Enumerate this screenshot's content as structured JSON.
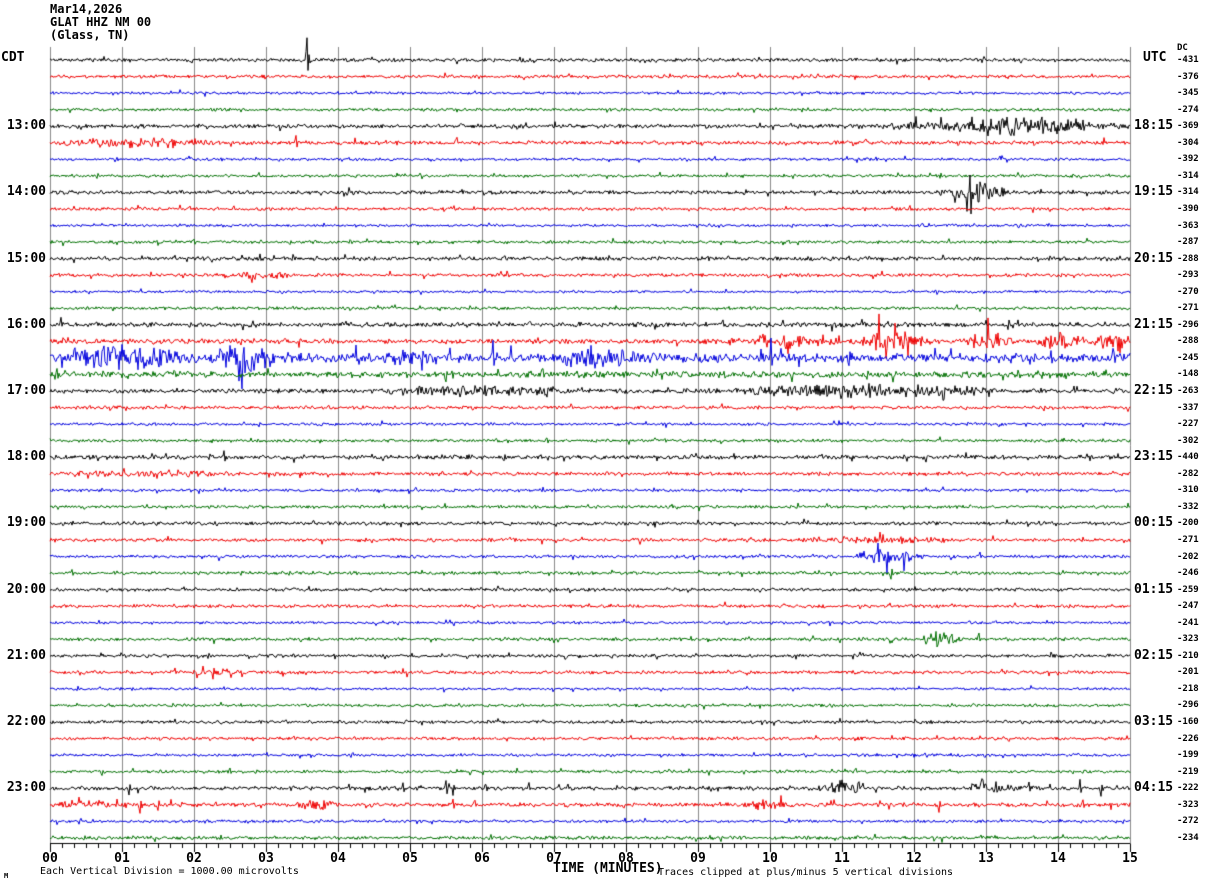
{
  "header": {
    "date_line": "Mar14,2026",
    "station_line": "GLAT HHZ NM 00",
    "location_line": "(Glass, TN)",
    "left_tz": "CDT",
    "right_tz": "UTC",
    "dc_header": "DC"
  },
  "footer": {
    "xlabel": "TIME (MINUTES)",
    "scale_note": "Each Vertical Division = 1000.00 microvolts",
    "clip_note": "Traces clipped at plus/minus 5 vertical divisions",
    "scale_mark": "M"
  },
  "x_ticks": [
    "00",
    "01",
    "02",
    "03",
    "04",
    "05",
    "06",
    "07",
    "08",
    "09",
    "10",
    "11",
    "12",
    "13",
    "14",
    "15"
  ],
  "colors": {
    "trace_cycle": [
      "#000000",
      "#ee0000",
      "#0000dd",
      "#007000"
    ],
    "grid": "#888888",
    "axis": "#000000"
  },
  "chart_data": {
    "type": "line",
    "subtype": "helicorder-seismogram",
    "title": "GLAT HHZ NM 00 (Glass, TN) Mar14,2026",
    "xlabel": "TIME (MINUTES)",
    "x_range_minutes": [
      0,
      15
    ],
    "minutes_per_line": 15,
    "lines_per_hour": 4,
    "left_time_axis": "CDT",
    "right_time_axis": "UTC",
    "grid": "vertical lines every minute",
    "clip_divisions": 5,
    "microvolts_per_division": "1000.00",
    "traces": [
      {
        "c": 0,
        "dc": -431,
        "a": 1.5,
        "sp": [
          [
            3.57,
            22
          ]
        ]
      },
      {
        "c": 1,
        "dc": -376,
        "a": 1.4
      },
      {
        "c": 2,
        "dc": -345,
        "a": 1.1
      },
      {
        "c": 3,
        "dc": -274,
        "a": 1.2
      },
      {
        "c": 0,
        "dc": -369,
        "a": 1.7,
        "cdt": "13:00",
        "utc": "18:15",
        "ev": [
          [
            11.2,
            15,
            2.8
          ],
          [
            12.5,
            14.5,
            3.5
          ]
        ]
      },
      {
        "c": 1,
        "dc": -304,
        "a": 1.6,
        "ev": [
          [
            0,
            2.4,
            2.6
          ]
        ],
        "sp": [
          [
            3.42,
            7
          ],
          [
            5.65,
            5
          ],
          [
            8.4,
            3
          ]
        ]
      },
      {
        "c": 2,
        "dc": -392,
        "a": 1.2,
        "sp": [
          [
            13.2,
            3
          ]
        ]
      },
      {
        "c": 3,
        "dc": -314,
        "a": 1.2
      },
      {
        "c": 0,
        "dc": -314,
        "a": 1.6,
        "cdt": "14:00",
        "utc": "19:15",
        "ev": [
          [
            12.3,
            13.4,
            6
          ]
        ],
        "sp": [
          [
            12.78,
            11
          ],
          [
            12.9,
            -9
          ]
        ]
      },
      {
        "c": 1,
        "dc": -390,
        "a": 1.3,
        "sp": [
          [
            1.95,
            4
          ],
          [
            2.55,
            3
          ]
        ]
      },
      {
        "c": 2,
        "dc": -363,
        "a": 1.1
      },
      {
        "c": 3,
        "dc": -287,
        "a": 1.3,
        "sp": [
          [
            2.0,
            3
          ]
        ]
      },
      {
        "c": 0,
        "dc": -288,
        "a": 1.6,
        "cdt": "15:00",
        "utc": "20:15"
      },
      {
        "c": 1,
        "dc": -293,
        "a": 1.4,
        "ev": [
          [
            2.3,
            3.4,
            2.2
          ]
        ]
      },
      {
        "c": 2,
        "dc": -270,
        "a": 1.1
      },
      {
        "c": 3,
        "dc": -271,
        "a": 1.3
      },
      {
        "c": 0,
        "dc": -296,
        "a": 2.0,
        "cdt": "16:00",
        "utc": "21:15",
        "sp": [
          [
            0.15,
            6
          ],
          [
            9.35,
            5
          ],
          [
            13.0,
            4
          ]
        ]
      },
      {
        "c": 1,
        "dc": -288,
        "a": 2.0,
        "ev": [
          [
            9.8,
            11.0,
            4
          ],
          [
            11.2,
            12.2,
            7
          ],
          [
            12.7,
            13.4,
            6
          ],
          [
            13.7,
            14.4,
            5
          ],
          [
            14.5,
            15,
            7
          ]
        ],
        "sp": [
          [
            11.52,
            22
          ],
          [
            11.62,
            -18
          ],
          [
            9.9,
            7
          ]
        ]
      },
      {
        "c": 2,
        "dc": -245,
        "a": 4.0,
        "ev": [
          [
            0.3,
            1.8,
            6
          ],
          [
            2.2,
            3.2,
            7
          ],
          [
            4.6,
            5.4,
            4
          ],
          [
            7.0,
            8.2,
            4
          ]
        ],
        "sp": [
          [
            0.35,
            13
          ],
          [
            2.62,
            -17
          ],
          [
            2.7,
            15
          ],
          [
            5.0,
            -12
          ],
          [
            6.15,
            13
          ],
          [
            7.5,
            -12
          ],
          [
            10.02,
            17
          ],
          [
            11.1,
            -9
          ],
          [
            13.9,
            8
          ]
        ]
      },
      {
        "c": 3,
        "dc": -148,
        "a": 2.6,
        "sp": [
          [
            0.1,
            6
          ],
          [
            5.5,
            -8
          ],
          [
            6.85,
            7
          ],
          [
            11.35,
            -6
          ]
        ]
      },
      {
        "c": 0,
        "dc": -263,
        "a": 1.9,
        "cdt": "17:00",
        "utc": "22:15",
        "ev": [
          [
            4.4,
            7.3,
            3.2
          ],
          [
            9.4,
            13.3,
            3.6
          ]
        ],
        "sp": [
          [
            6.9,
            -9
          ],
          [
            10.5,
            6
          ],
          [
            11.7,
            7
          ],
          [
            12.4,
            -7
          ]
        ]
      },
      {
        "c": 1,
        "dc": -337,
        "a": 1.4,
        "sp": [
          [
            13.8,
            -4
          ]
        ]
      },
      {
        "c": 2,
        "dc": -227,
        "a": 1.2
      },
      {
        "c": 3,
        "dc": -302,
        "a": 1.3,
        "sp": [
          [
            6.9,
            4
          ]
        ]
      },
      {
        "c": 0,
        "dc": -440,
        "a": 1.8,
        "cdt": "18:00",
        "utc": "23:15",
        "sp": [
          [
            2.42,
            7
          ],
          [
            6.3,
            -4
          ],
          [
            9.5,
            4
          ]
        ]
      },
      {
        "c": 1,
        "dc": -282,
        "a": 1.5,
        "ev": [
          [
            0,
            2.6,
            1.5
          ]
        ]
      },
      {
        "c": 2,
        "dc": -310,
        "a": 1.2
      },
      {
        "c": 3,
        "dc": -332,
        "a": 1.3
      },
      {
        "c": 0,
        "dc": -200,
        "a": 1.5,
        "cdt": "19:00",
        "utc": "00:15"
      },
      {
        "c": 1,
        "dc": -271,
        "a": 1.4,
        "ev": [
          [
            10.4,
            12.6,
            1.8
          ]
        ]
      },
      {
        "c": 2,
        "dc": -202,
        "a": 1.3,
        "ev": [
          [
            11.15,
            12.2,
            4
          ]
        ],
        "sp": [
          [
            11.5,
            9
          ],
          [
            11.62,
            -15
          ],
          [
            12.92,
            5
          ]
        ]
      },
      {
        "c": 3,
        "dc": -246,
        "a": 1.4,
        "sp": [
          [
            0.3,
            4
          ],
          [
            11.68,
            -7
          ]
        ]
      },
      {
        "c": 0,
        "dc": -259,
        "a": 1.4,
        "cdt": "20:00",
        "utc": "01:15"
      },
      {
        "c": 1,
        "dc": -247,
        "a": 1.4
      },
      {
        "c": 2,
        "dc": -241,
        "a": 1.1
      },
      {
        "c": 3,
        "dc": -323,
        "a": 1.4,
        "ev": [
          [
            12.1,
            12.65,
            4.5
          ]
        ],
        "sp": [
          [
            12.3,
            7
          ],
          [
            12.9,
            6
          ]
        ]
      },
      {
        "c": 0,
        "dc": -210,
        "a": 1.4,
        "cdt": "21:00",
        "utc": "02:15",
        "sp": [
          [
            2.2,
            -3
          ]
        ]
      },
      {
        "c": 1,
        "dc": -201,
        "a": 1.4,
        "ev": [
          [
            1.95,
            2.7,
            2
          ]
        ]
      },
      {
        "c": 2,
        "dc": -218,
        "a": 1.1
      },
      {
        "c": 3,
        "dc": -296,
        "a": 1.2
      },
      {
        "c": 0,
        "dc": -160,
        "a": 1.4,
        "cdt": "22:00",
        "utc": "03:15"
      },
      {
        "c": 1,
        "dc": -226,
        "a": 1.3
      },
      {
        "c": 2,
        "dc": -199,
        "a": 1.2
      },
      {
        "c": 3,
        "dc": -219,
        "a": 1.3,
        "sp": [
          [
            1.15,
            4
          ],
          [
            2.5,
            4
          ],
          [
            7.55,
            3
          ],
          [
            11.2,
            3
          ]
        ]
      },
      {
        "c": 0,
        "dc": -222,
        "a": 1.6,
        "cdt": "23:00",
        "utc": "04:15",
        "ev": [
          [
            10.6,
            11.4,
            3
          ],
          [
            12.7,
            13.5,
            3
          ]
        ],
        "sp": [
          [
            1.1,
            -7
          ],
          [
            4.15,
            5
          ],
          [
            4.9,
            6
          ],
          [
            5.5,
            9
          ],
          [
            5.6,
            -7
          ],
          [
            6.05,
            5
          ],
          [
            6.65,
            6
          ],
          [
            7.2,
            4
          ],
          [
            11.0,
            8
          ],
          [
            12.95,
            7
          ],
          [
            13.6,
            6
          ],
          [
            14.3,
            8
          ],
          [
            14.6,
            -9
          ]
        ]
      },
      {
        "c": 1,
        "dc": -323,
        "a": 1.7,
        "ev": [
          [
            0,
            1.2,
            2.2
          ],
          [
            3.4,
            4.0,
            3
          ],
          [
            9.6,
            10.4,
            2.5
          ]
        ],
        "sp": [
          [
            1.25,
            -8
          ],
          [
            1.5,
            -7
          ],
          [
            2.3,
            4
          ],
          [
            5.6,
            6
          ],
          [
            5.9,
            5
          ],
          [
            12.35,
            -7
          ],
          [
            14.35,
            5
          ]
        ]
      },
      {
        "c": 2,
        "dc": -272,
        "a": 1.2
      },
      {
        "c": 3,
        "dc": -234,
        "a": 1.5
      }
    ]
  }
}
